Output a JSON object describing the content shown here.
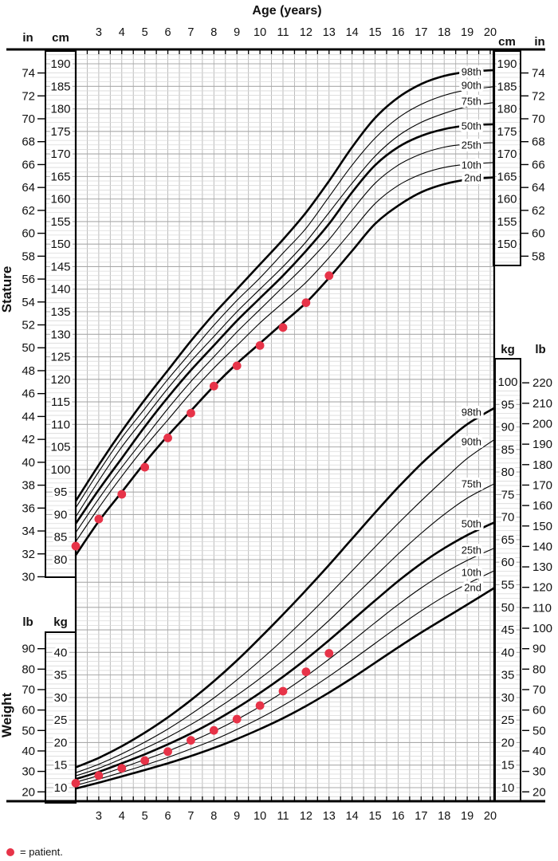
{
  "title": "Age (years)",
  "legend": {
    "text": "= patient."
  },
  "colors": {
    "patient": "#e73348",
    "curve": "#000000",
    "grid_minor": "#d9d9d9",
    "grid_major": "#a9a9a9",
    "grid_vertical": "#b4b4b4",
    "box_border": "#000000",
    "text": "#111111"
  },
  "axes": {
    "age": {
      "title": "Age (years)",
      "tick_values": [
        3,
        4,
        5,
        6,
        7,
        8,
        9,
        10,
        11,
        12,
        13,
        14,
        15,
        16,
        17,
        18,
        19,
        20
      ],
      "range": [
        2,
        20
      ]
    },
    "stature": {
      "label": "Stature",
      "unit_left_outer": "in",
      "unit_left_inner": "cm",
      "unit_right_inner": "cm",
      "unit_right_outer": "in",
      "cm_left_ticks": [
        190,
        185,
        180,
        175,
        170,
        165,
        160,
        155,
        150,
        145,
        140,
        135,
        130,
        125,
        120,
        115,
        110,
        105,
        100,
        95,
        90,
        85,
        80
      ],
      "cm_right_ticks": [
        190,
        185,
        180,
        175,
        170,
        165,
        160,
        155,
        150
      ],
      "in_left_ticks": [
        74,
        72,
        70,
        68,
        66,
        64,
        62,
        60,
        58,
        56,
        54,
        52,
        50,
        48,
        46,
        44,
        42,
        40,
        38,
        36,
        34,
        32,
        30
      ],
      "in_right_ticks": [
        74,
        72,
        70,
        68,
        66,
        64,
        62,
        60,
        58
      ]
    },
    "weight": {
      "label": "Weight",
      "unit_left_outer": "lb",
      "unit_left_inner": "kg",
      "unit_right_inner": "kg",
      "unit_right_outer": "lb",
      "kg_left_ticks": [
        40,
        35,
        30,
        25,
        20,
        15,
        10
      ],
      "kg_right_ticks": [
        100,
        95,
        90,
        85,
        80,
        75,
        70,
        65,
        60,
        55,
        50,
        45,
        40,
        35,
        30,
        25,
        20,
        15,
        10
      ],
      "lb_left_ticks": [
        90,
        80,
        70,
        60,
        50,
        40,
        30,
        20
      ],
      "lb_right_ticks": [
        220,
        210,
        200,
        190,
        180,
        170,
        160,
        150,
        140,
        130,
        120,
        110,
        100,
        90,
        80,
        70,
        60,
        50,
        40,
        30,
        20
      ]
    }
  },
  "chart_data": {
    "type": "line",
    "title": "Age (years)",
    "xlabel": "Age (years)",
    "x_ages": [
      2,
      3,
      4,
      5,
      6,
      7,
      8,
      9,
      10,
      11,
      12,
      13,
      14,
      15,
      16,
      17,
      18,
      19,
      20
    ],
    "age_range": [
      2,
      20
    ],
    "stature_cm_range": [
      80,
      190
    ],
    "weight_kg_range": [
      10,
      100
    ],
    "grid": true,
    "percentile_label_order": [
      "98th",
      "90th",
      "75th",
      "50th",
      "25th",
      "10th",
      "2nd"
    ],
    "stature_percentiles_cm": [
      {
        "name": "98th",
        "bold": true,
        "values": [
          93,
          101,
          108.5,
          115.5,
          122,
          128.5,
          134.5,
          140,
          145.5,
          151,
          157,
          164,
          171.5,
          178,
          182.5,
          185.5,
          187.3,
          188.2,
          188.6
        ]
      },
      {
        "name": "90th",
        "bold": false,
        "values": [
          91.5,
          99.5,
          107,
          113.5,
          120,
          126,
          132,
          137.5,
          142.5,
          148,
          153.5,
          160.5,
          167.5,
          173.5,
          178,
          181,
          183,
          184.2,
          184.9
        ]
      },
      {
        "name": "75th",
        "bold": false,
        "values": [
          89.5,
          97.5,
          105,
          111.5,
          118,
          124,
          129.5,
          135,
          140,
          145,
          150.5,
          157,
          163.5,
          169.5,
          174,
          177,
          179,
          180.5,
          181.4
        ]
      },
      {
        "name": "50th",
        "bold": true,
        "values": [
          88,
          95.5,
          102.5,
          109.5,
          116,
          122,
          127.5,
          133,
          138,
          143,
          148.5,
          154.5,
          161.5,
          167.5,
          171.5,
          174,
          175.5,
          176.3,
          176.6
        ]
      },
      {
        "name": "25th",
        "bold": false,
        "values": [
          86,
          93.5,
          100.5,
          107,
          113.5,
          119.5,
          125,
          130.5,
          135.5,
          140.5,
          145.5,
          151,
          157.5,
          163.5,
          167.5,
          170,
          171.5,
          172.2,
          172.5
        ]
      },
      {
        "name": "10th",
        "bold": false,
        "values": [
          84,
          91.5,
          98.5,
          105,
          111,
          117,
          122.5,
          127.5,
          132.5,
          137,
          141.5,
          147,
          153,
          159,
          163,
          165.5,
          167,
          167.7,
          168.1
        ]
      },
      {
        "name": "2nd",
        "bold": true,
        "values": [
          81,
          88.5,
          95,
          101.5,
          107.5,
          113,
          118.5,
          123.5,
          128,
          132.5,
          137,
          142.5,
          148.5,
          154.5,
          158.5,
          161.5,
          163.3,
          164.3,
          164.8
        ]
      }
    ],
    "weight_percentiles_kg": [
      {
        "name": "98th",
        "bold": true,
        "values": [
          14.5,
          16.6,
          19.2,
          22.2,
          25.6,
          29.4,
          33.6,
          38.2,
          43.2,
          48.4,
          53.8,
          59.4,
          65.2,
          71,
          76.6,
          81.8,
          86.4,
          90.6,
          94.3
        ]
      },
      {
        "name": "90th",
        "bold": false,
        "values": [
          13.3,
          15.2,
          17.5,
          20.1,
          23,
          26.3,
          29.9,
          33.9,
          38.2,
          42.8,
          47.7,
          52.8,
          58.1,
          63.4,
          68.6,
          73.6,
          78.4,
          83,
          87.3
        ]
      },
      {
        "name": "75th",
        "bold": false,
        "values": [
          12.6,
          14.3,
          16.4,
          18.7,
          21.2,
          24,
          27.1,
          30.5,
          34.2,
          38.2,
          42.5,
          47.1,
          52,
          56.9,
          61.8,
          66.4,
          70.6,
          74.2,
          77.5
        ]
      },
      {
        "name": "50th",
        "bold": true,
        "values": [
          11.9,
          13.5,
          15.4,
          17.4,
          19.6,
          22,
          24.7,
          27.7,
          31,
          34.6,
          38.5,
          42.7,
          47.1,
          51.5,
          55.8,
          59.7,
          63.1,
          66,
          68.9
        ]
      },
      {
        "name": "25th",
        "bold": false,
        "values": [
          11.2,
          12.7,
          14.4,
          16.2,
          18.1,
          20.2,
          22.5,
          25.1,
          28,
          31.2,
          34.7,
          38.5,
          42.5,
          46.6,
          50.6,
          54.3,
          57.6,
          60.4,
          63.2
        ]
      },
      {
        "name": "10th",
        "bold": false,
        "values": [
          10.5,
          11.9,
          13.4,
          15,
          16.7,
          18.6,
          20.6,
          22.9,
          25.4,
          28.2,
          31.3,
          34.7,
          38.3,
          42,
          45.7,
          49.2,
          52.4,
          55.2,
          58.2
        ]
      },
      {
        "name": "2nd",
        "bold": true,
        "values": [
          9.8,
          11.1,
          12.5,
          13.9,
          15.4,
          17,
          18.8,
          20.8,
          23,
          25.4,
          28.1,
          31.1,
          34.3,
          37.7,
          41.1,
          44.4,
          47.5,
          50.6,
          54.4
        ]
      }
    ],
    "patient": {
      "ages": [
        2,
        3,
        4,
        5,
        6,
        7,
        8,
        9,
        10,
        11,
        12,
        13
      ],
      "stature_cm": [
        83,
        89,
        94.5,
        100.5,
        107,
        112.5,
        118.5,
        123,
        127.5,
        131.5,
        137,
        143
      ],
      "weight_kg": [
        11,
        12.7,
        14.3,
        16,
        18,
        20.5,
        22.7,
        25.2,
        28.2,
        31.4,
        35.7,
        39.8
      ]
    },
    "legend_note": "= patient."
  }
}
